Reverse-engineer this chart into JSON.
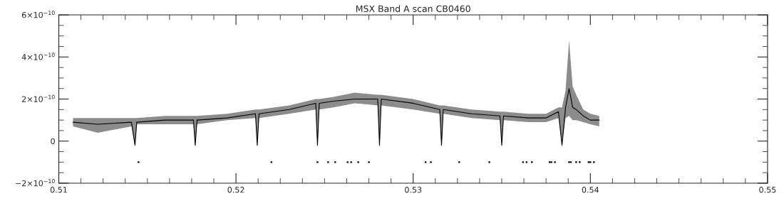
{
  "chart_data": {
    "type": "line",
    "title": "MSX Band A scan CB0460",
    "xlim": [
      0.51,
      0.55
    ],
    "xticks": [
      0.51,
      0.52,
      0.53,
      0.54,
      0.55
    ],
    "ylim": [
      -2e-10,
      6e-10
    ],
    "yticks": [
      {
        "value": -2e-10,
        "label": "−2×10$^{−10}$"
      },
      0,
      {
        "value": 2e-10,
        "label": "2×10$^{−10}$"
      },
      {
        "value": 4e-10,
        "label": "4×10$^{−10}$"
      },
      {
        "value": 6e-10,
        "label": "6×10$^{−10}$"
      }
    ],
    "grid": false,
    "legend": false,
    "series": [
      {
        "color": "#000000",
        "x": [
          0.5108,
          0.5122,
          0.5141,
          0.5143,
          0.5144,
          0.516,
          0.5176,
          0.5177,
          0.5178,
          0.5195,
          0.5211,
          0.5212,
          0.5213,
          0.523,
          0.5245,
          0.5246,
          0.5247,
          0.5255,
          0.5267,
          0.528,
          0.5281,
          0.5282,
          0.53,
          0.5315,
          0.5316,
          0.5317,
          0.5333,
          0.5349,
          0.535,
          0.5351,
          0.5365,
          0.5375,
          0.5382,
          0.5384,
          0.5386,
          0.5388,
          0.539,
          0.5392,
          0.5396,
          0.54,
          0.5405
        ],
        "values": [
          9e-11,
          8e-11,
          9e-11,
          -2e-11,
          9e-11,
          1e-10,
          1e-10,
          -2e-11,
          1e-10,
          1.1e-10,
          1.3e-10,
          -2e-11,
          1.3e-10,
          1.5e-10,
          1.8e-10,
          -2e-11,
          1.8e-10,
          1.9e-10,
          2e-10,
          2e-10,
          -2e-11,
          2e-10,
          1.8e-10,
          1.5e-10,
          -2e-11,
          1.5e-10,
          1.3e-10,
          1.2e-10,
          -2e-11,
          1.2e-10,
          1.1e-10,
          1.1e-10,
          1.4e-10,
          -2e-11,
          1.6e-10,
          2.5e-10,
          1.6e-10,
          1.5e-10,
          1.2e-10,
          1e-10,
          1e-10
        ],
        "lower": [
          7e-11,
          4e-11,
          7e-11,
          -2e-11,
          8e-11,
          8e-11,
          8e-11,
          -2e-11,
          8e-11,
          1e-10,
          1.1e-10,
          -2e-11,
          1.1e-10,
          1.3e-10,
          1.5e-10,
          -2e-11,
          1.5e-10,
          1.6e-10,
          1.8e-10,
          1.7e-10,
          -2e-11,
          1.7e-10,
          1.5e-10,
          1.3e-10,
          -2e-11,
          1.3e-10,
          1.1e-10,
          1e-10,
          -2e-11,
          1e-10,
          9e-11,
          9e-11,
          1.1e-10,
          -2e-11,
          1.1e-10,
          1.2e-10,
          1e-10,
          1e-10,
          9e-11,
          8e-11,
          7e-11
        ],
        "upper": [
          1.1e-10,
          1.1e-10,
          1.1e-10,
          1.1e-10,
          1.1e-10,
          1.2e-10,
          1.2e-10,
          1.2e-10,
          1.2e-10,
          1.3e-10,
          1.5e-10,
          1.5e-10,
          1.5e-10,
          1.7e-10,
          2e-10,
          2e-10,
          2e-10,
          2.1e-10,
          2.3e-10,
          2.2e-10,
          2.2e-10,
          2.2e-10,
          2e-10,
          1.7e-10,
          1.7e-10,
          1.7e-10,
          1.5e-10,
          1.4e-10,
          1.4e-10,
          1.4e-10,
          1.3e-10,
          1.3e-10,
          1.6e-10,
          1.6e-10,
          2.4e-10,
          4.8e-10,
          2.6e-10,
          2.2e-10,
          1.5e-10,
          1.3e-10,
          1.2e-10
        ]
      },
      {
        "type": "scatter",
        "color": "#000000",
        "marker": "square",
        "x": [
          0.5145,
          0.522,
          0.5246,
          0.5252,
          0.5256,
          0.5263,
          0.5265,
          0.5269,
          0.5275,
          0.5307,
          0.531,
          0.5326,
          0.5343,
          0.5362,
          0.5364,
          0.5367,
          0.5377,
          0.5378,
          0.538,
          0.5388,
          0.5389,
          0.5392,
          0.5394,
          0.5399,
          0.54,
          0.5402
        ],
        "values": [
          -1e-10,
          -1e-10,
          -1e-10,
          -1e-10,
          -1e-10,
          -1e-10,
          -1e-10,
          -1e-10,
          -1e-10,
          -1e-10,
          -1e-10,
          -1e-10,
          -1e-10,
          -1e-10,
          -1e-10,
          -1e-10,
          -1e-10,
          -1e-10,
          -1e-10,
          -1e-10,
          -1e-10,
          -1e-10,
          -1e-10,
          -1e-10,
          -1e-10,
          -1e-10
        ]
      }
    ]
  }
}
